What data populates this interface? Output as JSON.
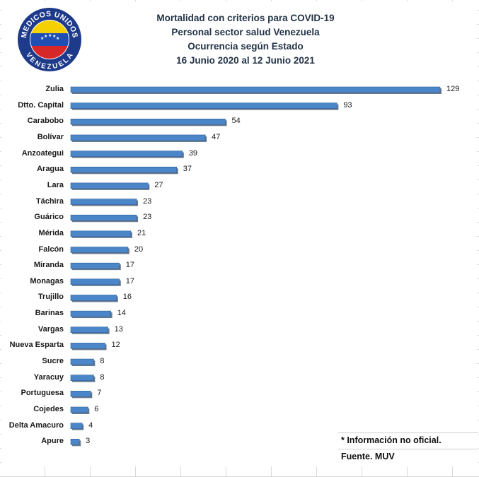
{
  "logo": {
    "top_text": "MEDICOS UNIDOS",
    "bottom_text": "VENEZUELA",
    "colors": {
      "ring": "#1e3a8a",
      "yellow": "#f5d000",
      "blue": "#1f4fb5",
      "red": "#d62828"
    }
  },
  "chart_data": {
    "type": "bar",
    "orientation": "horizontal",
    "title_lines": [
      "Mortalidad con criterios para COVID-19",
      "Personal sector salud Venezuela",
      "Ocurrencia según Estado",
      "16 Junio 2020 al 12 Junio 2021"
    ],
    "categories": [
      "Zulia",
      "Dtto. Capital",
      "Carabobo",
      "Bolívar",
      "Anzoategui",
      "Aragua",
      "Lara",
      "Táchira",
      "Guárico",
      "Mérida",
      "Falcón",
      "Miranda",
      "Monagas",
      "Trujillo",
      "Barinas",
      "Vargas",
      "Nueva Esparta",
      "Sucre",
      "Yaracuy",
      "Portuguesa",
      "Cojedes",
      "Delta Amacuro",
      "Apure"
    ],
    "values": [
      129,
      93,
      54,
      47,
      39,
      37,
      27,
      23,
      23,
      21,
      20,
      17,
      17,
      16,
      14,
      13,
      12,
      8,
      8,
      7,
      6,
      4,
      3
    ],
    "xlim": [
      0,
      129
    ],
    "grid": false,
    "legend": "none",
    "bar_color": "#4a86c8",
    "bar_shadow_color": "#6d7b8d"
  },
  "notes": {
    "info": "* Información no oficial.",
    "source": "Fuente. MUV"
  }
}
